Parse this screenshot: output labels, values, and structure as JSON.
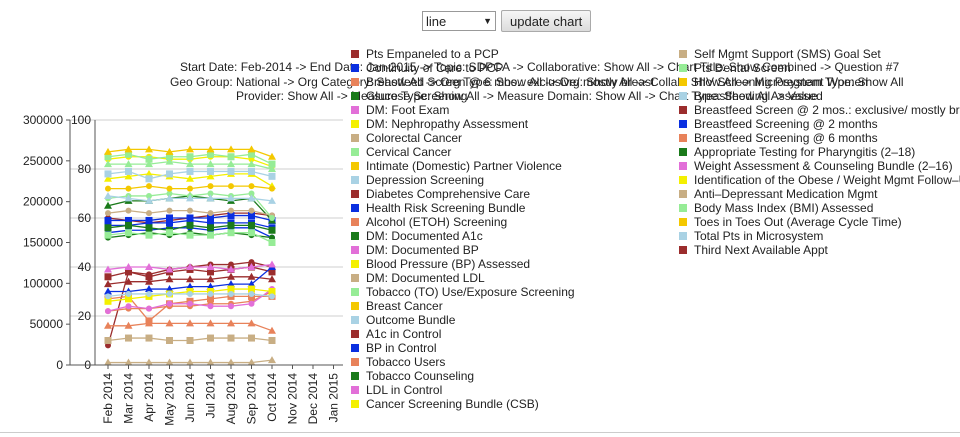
{
  "controls": {
    "chart_type_value": "line",
    "update_label": "update chart"
  },
  "subtitles": [
    "Start Date: Feb-2014 -> End Date: Jan-2015 -> Topic: SDPCA -> Collaborative: Show All -> Chart Title: Show Combined -> Question #7",
    "Geo Group: National -> Org Category: Show All -> Org Type: Show All -> Org: Show All -> Collab: Show All -> Microsystem Type: Show All",
    "Provider: Show All -> Measure Type: Show All -> Measure Domain: Show All -> Chart Type: Show All -> Value"
  ],
  "legend": [
    {
      "label": "Pts Empaneled to a PCP",
      "color": "#9b2d2d"
    },
    {
      "label": "Continuity of Care to PCP",
      "color": "#0a2fe0"
    },
    {
      "label": "Breastfeed Screen @ 6 mos.: exclusive/ mostly breast",
      "color": "#e8825a"
    },
    {
      "label": "Glucose Screening",
      "color": "#1a7a1a"
    },
    {
      "label": "DM: Foot Exam",
      "color": "#e26fd8"
    },
    {
      "label": "DM: Nephropathy Assessment",
      "color": "#f4f000"
    },
    {
      "label": "Colorectal Cancer",
      "color": "#c8ae84"
    },
    {
      "label": "Cervical Cancer",
      "color": "#96ec96"
    },
    {
      "label": "Intimate (Domestic) Partner Violence",
      "color": "#f4c800"
    },
    {
      "label": "Depression Screening",
      "color": "#a9d2e4"
    },
    {
      "label": "Diabetes Comprehensive Care",
      "color": "#9b2d2d"
    },
    {
      "label": "Health Risk Screening Bundle",
      "color": "#0a2fe0"
    },
    {
      "label": "Alcohol (ETOH) Screening",
      "color": "#e8825a"
    },
    {
      "label": "DM: Documented A1c",
      "color": "#1a7a1a"
    },
    {
      "label": "DM: Documented BP",
      "color": "#e26fd8"
    },
    {
      "label": "Blood Pressure (BP) Assessed",
      "color": "#f4f000"
    },
    {
      "label": "DM: Documented LDL",
      "color": "#c8ae84"
    },
    {
      "label": "Tobacco (TO) Use/Exposure Screening",
      "color": "#96ec96"
    },
    {
      "label": "Breast Cancer",
      "color": "#f4c800"
    },
    {
      "label": "Outcome Bundle",
      "color": "#a9d2e4"
    },
    {
      "label": "A1c in Control",
      "color": "#9b2d2d"
    },
    {
      "label": "BP in Control",
      "color": "#0a2fe0"
    },
    {
      "label": "Tobacco Users",
      "color": "#e8825a"
    },
    {
      "label": "Tobacco Counseling",
      "color": "#1a7a1a"
    },
    {
      "label": "LDL in Control",
      "color": "#e26fd8"
    },
    {
      "label": "Cancer Screening Bundle (CSB)",
      "color": "#f4f000"
    },
    {
      "label": "Self Mgmt Support (SMS) Goal Set",
      "color": "#c8ae84"
    },
    {
      "label": "Pts Dental Screen",
      "color": "#96ec96"
    },
    {
      "label": "HIV Screening Pregnant Women",
      "color": "#f4c800"
    },
    {
      "label": "Breastfeeding Assessed",
      "color": "#a9d2e4"
    },
    {
      "label": "Breastfeed Screen @ 2 mos.: exclusive/ mostly breast",
      "color": "#9b2d2d"
    },
    {
      "label": "Breastfeed Screening @ 2 months",
      "color": "#0a2fe0"
    },
    {
      "label": "Breastfeed Screening @ 6 months",
      "color": "#e8825a"
    },
    {
      "label": "Appropriate Testing for Pharyngitis (2–18)",
      "color": "#1a7a1a"
    },
    {
      "label": "Weight Assessment & Counseling Bundle (2–16)",
      "color": "#e26fd8"
    },
    {
      "label": "Identification of the Obese / Weight Mgmt Follow–Up",
      "color": "#f4f000"
    },
    {
      "label": "Anti–Depressant Medication Mgmt",
      "color": "#c8ae84"
    },
    {
      "label": "Body Mass Index (BMI) Assessed",
      "color": "#96ec96"
    },
    {
      "label": "Toes in Toes Out (Average Cycle Time)",
      "color": "#f4c800"
    },
    {
      "label": "Total Pts in Microsystem",
      "color": "#a9d2e4"
    },
    {
      "label": "Third Next Available Appt",
      "color": "#9b2d2d"
    }
  ],
  "chart_data": {
    "type": "line",
    "categories": [
      "Feb 2014",
      "Mar 2014",
      "Apr 2014",
      "May 2014",
      "Jun 2014",
      "Jul 2014",
      "Aug 2014",
      "Sep 2014",
      "Oct 2014",
      "Nov 2014",
      "Dec 2014",
      "Jan 2015"
    ],
    "left_axis": {
      "ylim": [
        0,
        300000
      ],
      "ticks": [
        "0",
        "50000",
        "100000",
        "150000",
        "200000",
        "250000",
        "300000"
      ]
    },
    "right_axis": {
      "ylim": [
        0,
        100
      ],
      "ticks": [
        "0",
        "20",
        "40",
        "60",
        "80",
        "100"
      ]
    },
    "grid": true,
    "legend_position": "right",
    "series_percent": [
      {
        "color": "#9b2d2d",
        "values": [
          8,
          38,
          37,
          39,
          40,
          41,
          41,
          42,
          40
        ]
      },
      {
        "color": "#9b2d2d",
        "values": [
          36,
          38,
          36,
          38,
          39,
          38,
          39,
          40,
          38
        ]
      },
      {
        "color": "#9b2d2d",
        "values": [
          33,
          34,
          34,
          35,
          35,
          35,
          36,
          36,
          35
        ]
      },
      {
        "color": "#9b2d2d",
        "values": [
          60,
          59,
          58,
          59,
          60,
          61,
          62,
          62,
          61
        ]
      },
      {
        "color": "#0a2fe0",
        "values": [
          57,
          57,
          58,
          58,
          59,
          58,
          58,
          58,
          56
        ]
      },
      {
        "color": "#0a2fe0",
        "values": [
          30,
          30,
          31,
          31,
          32,
          32,
          33,
          33,
          40
        ]
      },
      {
        "color": "#0a2fe0",
        "values": [
          54,
          55,
          55,
          56,
          56,
          55,
          56,
          56,
          52
        ]
      },
      {
        "color": "#0a2fe0",
        "values": [
          59,
          59,
          59,
          60,
          60,
          60,
          61,
          61,
          59
        ]
      },
      {
        "color": "#e8825a",
        "values": [
          16,
          16,
          17,
          17,
          17,
          17,
          17,
          17,
          14
        ]
      },
      {
        "color": "#e8825a",
        "values": [
          22,
          23,
          23,
          24,
          24,
          25,
          25,
          26,
          30
        ]
      },
      {
        "color": "#e8825a",
        "values": [
          27,
          28,
          18,
          25,
          26,
          27,
          28,
          28,
          28
        ]
      },
      {
        "color": "#1a7a1a",
        "values": [
          65,
          67,
          67,
          68,
          69,
          68,
          67,
          68,
          59
        ]
      },
      {
        "color": "#1a7a1a",
        "values": [
          52,
          53,
          54,
          53,
          54,
          53,
          54,
          53,
          52
        ]
      },
      {
        "color": "#1a7a1a",
        "values": [
          56,
          57,
          56,
          55,
          57,
          56,
          57,
          57,
          55
        ]
      },
      {
        "color": "#e26fd8",
        "values": [
          39,
          40,
          40,
          39,
          40,
          40,
          39,
          40,
          41
        ]
      },
      {
        "color": "#e26fd8",
        "values": [
          22,
          24,
          23,
          25,
          25,
          24,
          24,
          25,
          31
        ]
      },
      {
        "color": "#f4f000",
        "values": [
          26,
          27,
          28,
          29,
          30,
          30,
          31,
          31,
          30
        ]
      },
      {
        "color": "#f4f000",
        "values": [
          76,
          77,
          78,
          77,
          76,
          77,
          78,
          78,
          73
        ]
      },
      {
        "color": "#f4f000",
        "values": [
          84,
          85,
          85,
          84,
          84,
          85,
          85,
          84,
          81
        ]
      },
      {
        "color": "#c8ae84",
        "values": [
          10,
          11,
          11,
          10,
          10,
          11,
          11,
          11,
          10
        ]
      },
      {
        "color": "#c8ae84",
        "values": [
          1,
          1,
          1,
          1,
          1,
          1,
          1,
          1,
          2
        ]
      },
      {
        "color": "#c8ae84",
        "values": [
          62,
          63,
          62,
          63,
          63,
          62,
          63,
          63,
          61
        ]
      },
      {
        "color": "#96ec96",
        "values": [
          85,
          86,
          84,
          85,
          85,
          86,
          85,
          86,
          82
        ]
      },
      {
        "color": "#96ec96",
        "values": [
          82,
          82,
          82,
          83,
          82,
          82,
          82,
          82,
          80
        ]
      },
      {
        "color": "#96ec96",
        "values": [
          68,
          69,
          69,
          70,
          69,
          70,
          69,
          70,
          60
        ]
      },
      {
        "color": "#96ec96",
        "values": [
          53,
          54,
          53,
          54,
          53,
          53,
          54,
          54,
          50
        ]
      },
      {
        "color": "#f4c800",
        "values": [
          87,
          88,
          88,
          87,
          88,
          88,
          88,
          88,
          85
        ]
      },
      {
        "color": "#f4c800",
        "values": [
          72,
          72,
          73,
          72,
          72,
          73,
          73,
          73,
          72
        ]
      },
      {
        "color": "#a9d2e4",
        "values": [
          78,
          79,
          76,
          78,
          79,
          79,
          79,
          79,
          77
        ]
      },
      {
        "color": "#a9d2e4",
        "values": [
          69,
          68,
          67,
          68,
          68,
          68,
          68,
          68,
          67
        ]
      },
      {
        "color": "#a9d2e4",
        "values": [
          28,
          29,
          29,
          29,
          29,
          29,
          29,
          29,
          28
        ]
      }
    ]
  }
}
